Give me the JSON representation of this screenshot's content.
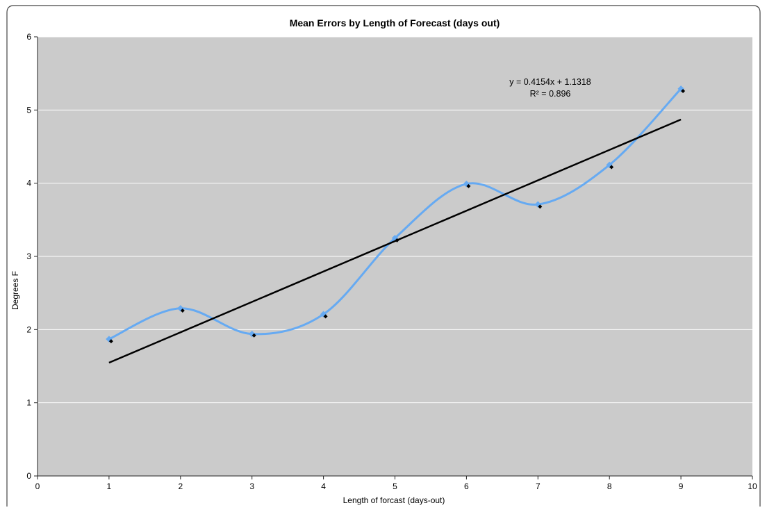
{
  "chart_data": {
    "type": "line",
    "title": "Mean Errors by Length of Forecast (days out)",
    "xlabel": "Length of forcast (days-out)",
    "ylabel": "Degrees F",
    "xlim": [
      0,
      10
    ],
    "ylim": [
      0,
      6
    ],
    "x_ticks": [
      "0",
      "1",
      "2",
      "3",
      "4",
      "5",
      "6",
      "7",
      "8",
      "9",
      "10"
    ],
    "y_ticks": [
      "0",
      "1",
      "2",
      "3",
      "4",
      "5",
      "6"
    ],
    "grid": true,
    "legend": "none",
    "series": [
      {
        "kind": "smoothed-line-with-markers",
        "color": "#66aaf2",
        "x": [
          1,
          2,
          3,
          4,
          5,
          6,
          7,
          8,
          9
        ],
        "y": [
          1.87,
          2.29,
          1.94,
          2.21,
          3.25,
          3.99,
          3.71,
          4.25,
          5.29
        ]
      },
      {
        "kind": "data-points",
        "color": "#000000",
        "x": [
          1,
          2,
          3,
          4,
          5,
          6,
          7,
          8,
          9
        ],
        "y": [
          1.84,
          2.26,
          1.92,
          2.18,
          3.22,
          3.96,
          3.68,
          4.22,
          5.26
        ]
      }
    ],
    "trendline": {
      "kind": "linear",
      "slope": 0.4154,
      "intercept": 1.1318,
      "x_range": [
        1,
        9
      ],
      "color": "#000000",
      "equation_label": "y = 0.4154x + 1.1318",
      "r2_label": "R² = 0.896"
    }
  },
  "colors": {
    "plot_background": "#cbcbcb",
    "gridline": "#ffffff",
    "axis": "#222222"
  }
}
